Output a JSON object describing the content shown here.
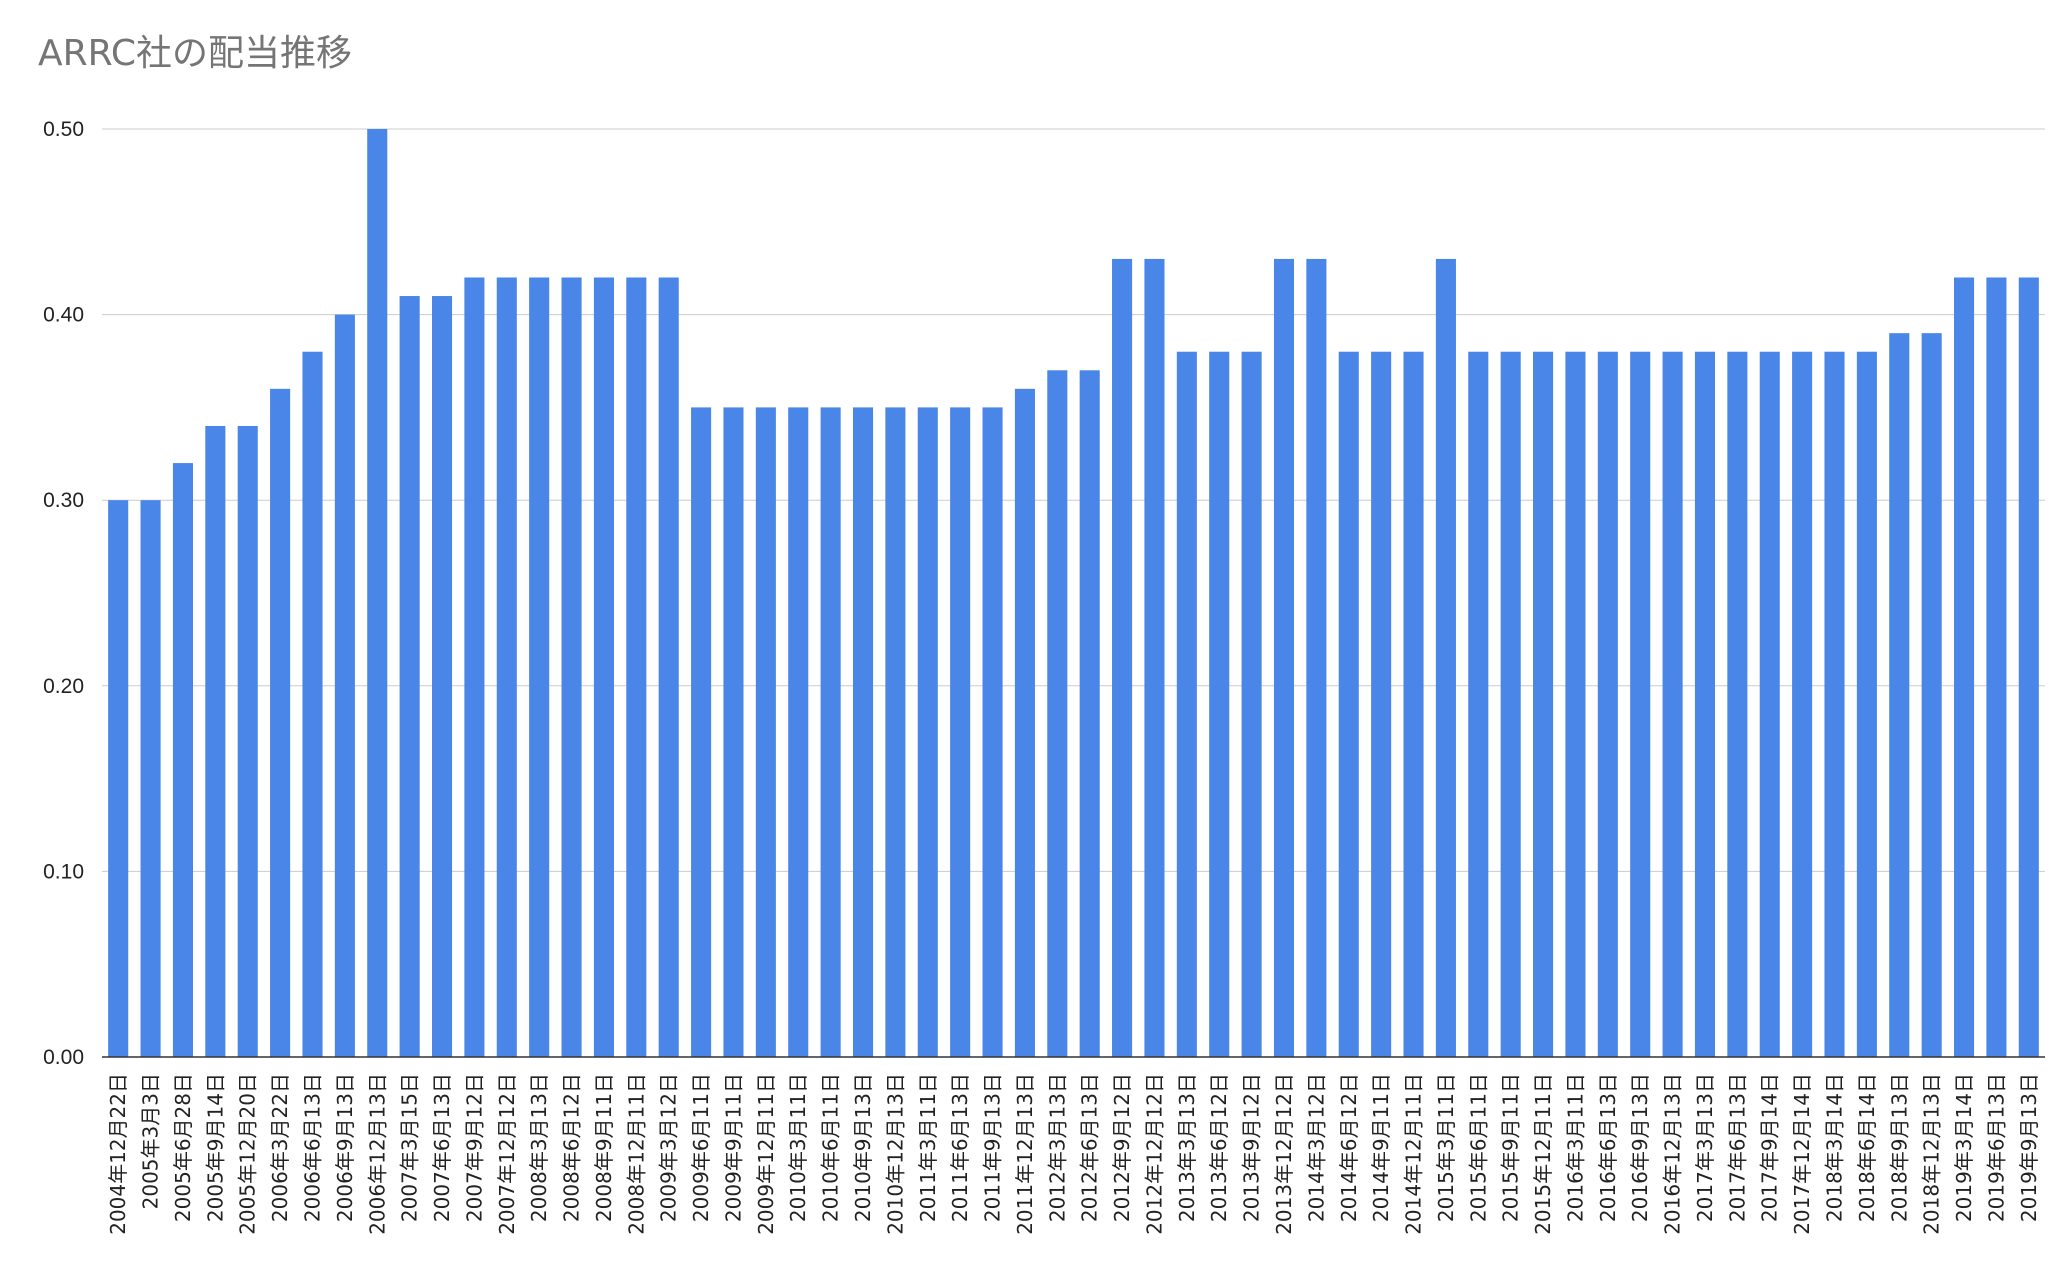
{
  "chart_data": {
    "type": "bar",
    "title": "ARRC社の配当推移",
    "xlabel": "",
    "ylabel": "",
    "ylim": [
      0,
      0.5
    ],
    "yticks": [
      "0.00",
      "0.10",
      "0.20",
      "0.30",
      "0.40",
      "0.50"
    ],
    "grid": true,
    "bar_color": "#4a86e8",
    "categories": [
      "2004年12月22日",
      "2005年3月3日",
      "2005年6月28日",
      "2005年9月14日",
      "2005年12月20日",
      "2006年3月22日",
      "2006年6月13日",
      "2006年9月13日",
      "2006年12月13日",
      "2007年3月15日",
      "2007年6月13日",
      "2007年9月12日",
      "2007年12月12日",
      "2008年3月13日",
      "2008年6月12日",
      "2008年9月11日",
      "2008年12月11日",
      "2009年3月12日",
      "2009年6月11日",
      "2009年9月11日",
      "2009年12月11日",
      "2010年3月11日",
      "2010年6月11日",
      "2010年9月13日",
      "2010年12月13日",
      "2011年3月11日",
      "2011年6月13日",
      "2011年9月13日",
      "2011年12月13日",
      "2012年3月13日",
      "2012年6月13日",
      "2012年9月12日",
      "2012年12月12日",
      "2013年3月13日",
      "2013年6月12日",
      "2013年9月12日",
      "2013年12月12日",
      "2014年3月12日",
      "2014年6月12日",
      "2014年9月11日",
      "2014年12月11日",
      "2015年3月11日",
      "2015年6月11日",
      "2015年9月11日",
      "2015年12月11日",
      "2016年3月11日",
      "2016年6月13日",
      "2016年9月13日",
      "2016年12月13日",
      "2017年3月13日",
      "2017年6月13日",
      "2017年9月14日",
      "2017年12月14日",
      "2018年3月14日",
      "2018年6月14日",
      "2018年9月13日",
      "2018年12月13日",
      "2019年3月14日",
      "2019年6月13日",
      "2019年9月13日"
    ],
    "values": [
      0.3,
      0.3,
      0.32,
      0.34,
      0.34,
      0.36,
      0.38,
      0.4,
      0.5,
      0.41,
      0.41,
      0.42,
      0.42,
      0.42,
      0.42,
      0.42,
      0.42,
      0.42,
      0.35,
      0.35,
      0.35,
      0.35,
      0.35,
      0.35,
      0.35,
      0.35,
      0.35,
      0.35,
      0.36,
      0.37,
      0.37,
      0.43,
      0.43,
      0.38,
      0.38,
      0.38,
      0.43,
      0.43,
      0.38,
      0.38,
      0.38,
      0.43,
      0.38,
      0.38,
      0.38,
      0.38,
      0.38,
      0.38,
      0.38,
      0.38,
      0.38,
      0.38,
      0.38,
      0.38,
      0.38,
      0.39,
      0.39,
      0.42,
      0.42,
      0.42
    ]
  }
}
